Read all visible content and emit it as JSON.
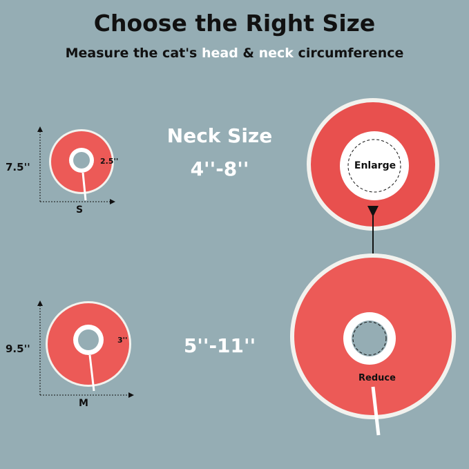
{
  "header": {
    "title": "Choose the Right Size",
    "subtitle_pre": "Measure the cat's ",
    "subtitle_head": "head",
    "subtitle_amp": " & ",
    "subtitle_neck": "neck",
    "subtitle_post": " circumference"
  },
  "small": {
    "height": "7.5''",
    "inner": "2.5''",
    "size": "S",
    "neck_range": "4''-8''"
  },
  "medium": {
    "height": "9.5''",
    "inner": "3''",
    "size": "M",
    "neck_range": "5''-11''"
  },
  "neck_label": "Neck Size",
  "detail": {
    "enlarge": "Enlarge",
    "reduce": "Reduce"
  },
  "colors": {
    "background": "#95adb4",
    "collar": "#ec5a57",
    "trim": "#f2f2ee"
  }
}
